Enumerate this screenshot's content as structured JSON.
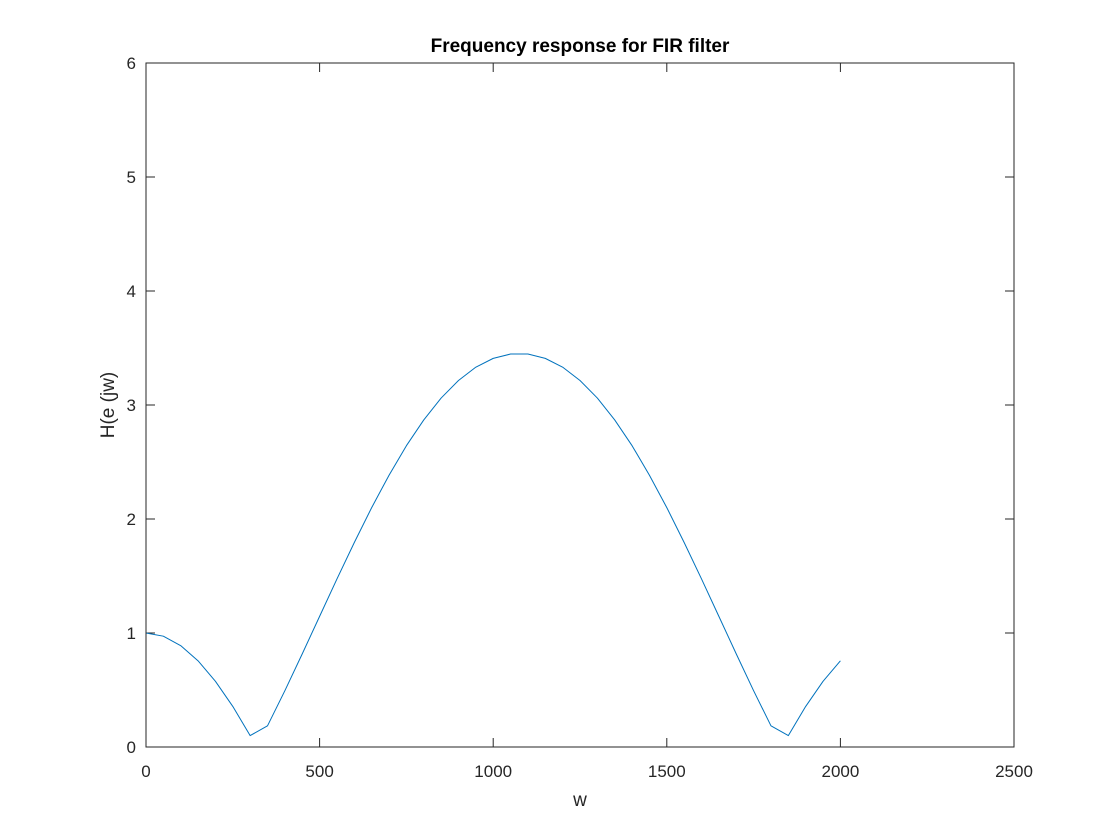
{
  "chart_data": {
    "type": "line",
    "title": "Frequency response for FIR filter",
    "xlabel": "w",
    "ylabel": "H(e (jw)",
    "xlim": [
      0,
      2500
    ],
    "ylim": [
      0,
      6
    ],
    "xticks": [
      0,
      500,
      1000,
      1500,
      2000,
      2500
    ],
    "yticks": [
      0,
      1,
      2,
      3,
      4,
      5,
      6
    ],
    "grid": false,
    "line_color": "#0072BD",
    "series": [
      {
        "x": [
          0,
          50,
          100,
          150,
          200,
          250,
          300,
          350,
          400,
          450,
          500,
          550,
          600,
          650,
          700,
          750,
          800,
          850,
          900,
          950,
          1000,
          1050,
          1100,
          1150,
          1200,
          1250,
          1300,
          1350,
          1400,
          1450,
          1500,
          1550,
          1600,
          1650,
          1700,
          1750,
          1800,
          1850,
          1900,
          1950,
          2000
        ],
        "y": [
          1.0,
          0.972,
          0.889,
          0.756,
          0.576,
          0.356,
          0.1,
          0.186,
          0.494,
          0.817,
          1.146,
          1.474,
          1.794,
          2.1,
          2.384,
          2.643,
          2.869,
          3.061,
          3.215,
          3.332,
          3.409,
          3.447,
          3.447,
          3.409,
          3.332,
          3.215,
          3.061,
          2.869,
          2.643,
          2.384,
          2.1,
          1.794,
          1.474,
          1.146,
          0.817,
          0.494,
          0.186,
          0.1,
          0.356,
          0.576,
          0.756
        ]
      }
    ]
  }
}
